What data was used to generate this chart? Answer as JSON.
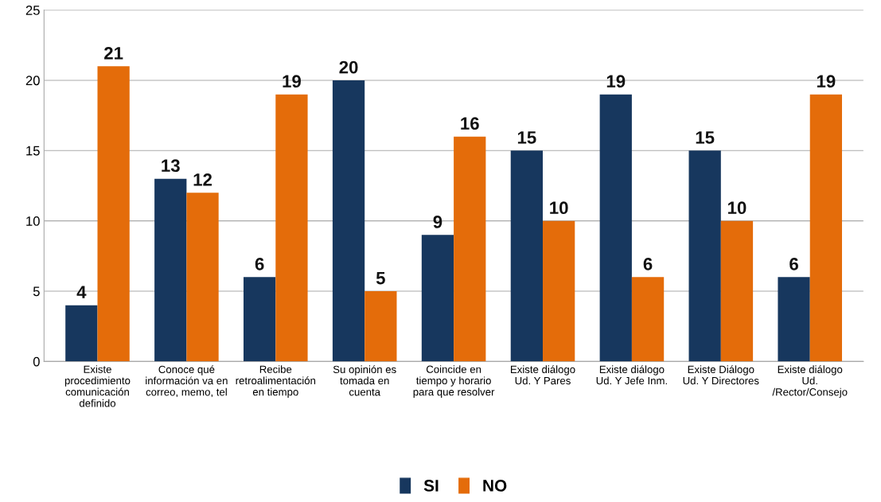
{
  "chart_data": {
    "type": "bar",
    "categories": [
      "Existe\nprocedimiento\ncomunicación\ndefinido",
      "Conoce qué\ninformación va en\ncorreo, memo, tel",
      "Recibe\nretroalimentación\nen tiempo",
      "Su opinión es\ntomada en\ncuenta",
      "Coincide en\ntiempo y horario\npara que resolver",
      "Existe diálogo\nUd. Y Pares",
      "Existe diálogo\nUd. Y Jefe Inm.",
      "Existe Diálogo\nUd. Y Directores",
      "Existe diálogo\nUd.\n/Rector/Consejo"
    ],
    "series": [
      {
        "name": "SI",
        "color": "#17375e",
        "values": [
          4,
          13,
          6,
          20,
          9,
          15,
          19,
          15,
          6
        ]
      },
      {
        "name": "NO",
        "color": "#e46c0a",
        "values": [
          21,
          12,
          19,
          5,
          16,
          10,
          6,
          10,
          19
        ]
      }
    ],
    "ylim": [
      0,
      25
    ],
    "yticks": [
      0,
      5,
      10,
      15,
      20,
      25
    ],
    "grid": "y",
    "legend": "bottom",
    "data_labels": true
  }
}
